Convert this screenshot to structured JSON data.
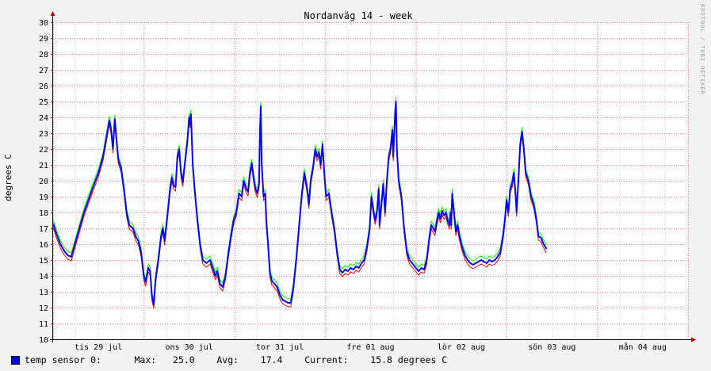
{
  "chart_data": {
    "type": "line",
    "title": "Nordanväg 14 - week",
    "ylabel": "degrees C",
    "xlabel": "",
    "ylim": [
      10,
      30
    ],
    "yticks": [
      10,
      11,
      12,
      13,
      14,
      15,
      16,
      17,
      18,
      19,
      20,
      21,
      22,
      23,
      24,
      25,
      26,
      27,
      28,
      29,
      30
    ],
    "xlim": [
      0,
      7
    ],
    "x_unit": "days",
    "day_labels": [
      "tis 29 jul",
      "ons 30 jul",
      "tor 31 jul",
      "fre 01 aug",
      "lör 02 aug",
      "sön 03 aug",
      "mån 04 aug"
    ],
    "grid": true,
    "series": [
      {
        "name": "temp sensor 0",
        "color": "#0000ff",
        "points": [
          [
            0.0,
            17.3
          ],
          [
            0.04,
            16.6
          ],
          [
            0.08,
            16.0
          ],
          [
            0.12,
            15.6
          ],
          [
            0.16,
            15.3
          ],
          [
            0.2,
            15.2
          ],
          [
            0.24,
            16.0
          ],
          [
            0.29,
            17.0
          ],
          [
            0.34,
            18.0
          ],
          [
            0.39,
            18.8
          ],
          [
            0.44,
            19.6
          ],
          [
            0.5,
            20.5
          ],
          [
            0.55,
            21.5
          ],
          [
            0.59,
            22.8
          ],
          [
            0.62,
            23.8
          ],
          [
            0.64,
            23.2
          ],
          [
            0.66,
            22.0
          ],
          [
            0.68,
            23.9
          ],
          [
            0.7,
            22.5
          ],
          [
            0.72,
            21.3
          ],
          [
            0.75,
            20.8
          ],
          [
            0.78,
            19.5
          ],
          [
            0.81,
            18.0
          ],
          [
            0.84,
            17.2
          ],
          [
            0.88,
            17.0
          ],
          [
            0.91,
            16.5
          ],
          [
            0.94,
            16.2
          ],
          [
            0.97,
            15.5
          ],
          [
            1.0,
            14.0
          ],
          [
            1.02,
            13.6
          ],
          [
            1.05,
            14.5
          ],
          [
            1.07,
            14.3
          ],
          [
            1.09,
            12.7
          ],
          [
            1.11,
            12.2
          ],
          [
            1.13,
            13.8
          ],
          [
            1.16,
            15.0
          ],
          [
            1.19,
            16.5
          ],
          [
            1.21,
            17.0
          ],
          [
            1.23,
            16.2
          ],
          [
            1.26,
            17.8
          ],
          [
            1.29,
            19.5
          ],
          [
            1.31,
            20.2
          ],
          [
            1.33,
            19.7
          ],
          [
            1.35,
            19.6
          ],
          [
            1.37,
            21.5
          ],
          [
            1.39,
            22.0
          ],
          [
            1.41,
            20.5
          ],
          [
            1.43,
            19.9
          ],
          [
            1.46,
            21.5
          ],
          [
            1.48,
            22.5
          ],
          [
            1.5,
            24.0
          ],
          [
            1.51,
            23.6
          ],
          [
            1.52,
            24.2
          ],
          [
            1.54,
            21.0
          ],
          [
            1.56,
            19.5
          ],
          [
            1.59,
            17.6
          ],
          [
            1.62,
            16.0
          ],
          [
            1.65,
            15.0
          ],
          [
            1.69,
            14.8
          ],
          [
            1.73,
            15.0
          ],
          [
            1.76,
            14.5
          ],
          [
            1.79,
            14.0
          ],
          [
            1.81,
            14.3
          ],
          [
            1.84,
            13.5
          ],
          [
            1.87,
            13.3
          ],
          [
            1.9,
            14.0
          ],
          [
            1.93,
            15.3
          ],
          [
            1.96,
            16.5
          ],
          [
            1.99,
            17.5
          ],
          [
            2.02,
            18.0
          ],
          [
            2.05,
            19.2
          ],
          [
            2.08,
            19.0
          ],
          [
            2.1,
            20.0
          ],
          [
            2.13,
            19.5
          ],
          [
            2.15,
            19.3
          ],
          [
            2.17,
            20.5
          ],
          [
            2.19,
            21.1
          ],
          [
            2.21,
            20.2
          ],
          [
            2.23,
            19.5
          ],
          [
            2.25,
            19.2
          ],
          [
            2.27,
            19.8
          ],
          [
            2.28,
            23.0
          ],
          [
            2.29,
            24.7
          ],
          [
            2.3,
            21.0
          ],
          [
            2.32,
            19.0
          ],
          [
            2.34,
            19.2
          ],
          [
            2.35,
            17.5
          ],
          [
            2.37,
            16.0
          ],
          [
            2.39,
            14.2
          ],
          [
            2.41,
            13.7
          ],
          [
            2.44,
            13.5
          ],
          [
            2.47,
            13.3
          ],
          [
            2.5,
            12.8
          ],
          [
            2.53,
            12.5
          ],
          [
            2.56,
            12.4
          ],
          [
            2.59,
            12.3
          ],
          [
            2.62,
            12.3
          ],
          [
            2.65,
            13.3
          ],
          [
            2.68,
            15.0
          ],
          [
            2.71,
            17.0
          ],
          [
            2.74,
            19.0
          ],
          [
            2.77,
            20.5
          ],
          [
            2.8,
            19.5
          ],
          [
            2.82,
            18.5
          ],
          [
            2.84,
            20.0
          ],
          [
            2.87,
            21.0
          ],
          [
            2.89,
            22.0
          ],
          [
            2.91,
            21.5
          ],
          [
            2.93,
            21.8
          ],
          [
            2.95,
            21.0
          ],
          [
            2.97,
            22.3
          ],
          [
            2.99,
            20.5
          ],
          [
            3.01,
            19.0
          ],
          [
            3.04,
            19.2
          ],
          [
            3.07,
            18.0
          ],
          [
            3.1,
            17.0
          ],
          [
            3.13,
            15.5
          ],
          [
            3.16,
            14.4
          ],
          [
            3.19,
            14.2
          ],
          [
            3.22,
            14.4
          ],
          [
            3.25,
            14.3
          ],
          [
            3.28,
            14.5
          ],
          [
            3.31,
            14.4
          ],
          [
            3.34,
            14.6
          ],
          [
            3.37,
            14.5
          ],
          [
            3.4,
            14.8
          ],
          [
            3.43,
            15.0
          ],
          [
            3.46,
            15.8
          ],
          [
            3.49,
            17.0
          ],
          [
            3.51,
            19.0
          ],
          [
            3.53,
            18.2
          ],
          [
            3.55,
            17.5
          ],
          [
            3.57,
            18.0
          ],
          [
            3.59,
            19.5
          ],
          [
            3.6,
            17.2
          ],
          [
            3.62,
            18.5
          ],
          [
            3.64,
            19.8
          ],
          [
            3.66,
            18.0
          ],
          [
            3.68,
            20.0
          ],
          [
            3.7,
            21.5
          ],
          [
            3.72,
            22.0
          ],
          [
            3.74,
            23.2
          ],
          [
            3.75,
            21.5
          ],
          [
            3.77,
            24.2
          ],
          [
            3.78,
            25.0
          ],
          [
            3.79,
            22.0
          ],
          [
            3.81,
            20.0
          ],
          [
            3.84,
            19.0
          ],
          [
            3.87,
            17.0
          ],
          [
            3.9,
            15.5
          ],
          [
            3.93,
            15.0
          ],
          [
            3.96,
            14.8
          ],
          [
            4.0,
            14.5
          ],
          [
            4.03,
            14.3
          ],
          [
            4.06,
            14.5
          ],
          [
            4.09,
            14.4
          ],
          [
            4.12,
            15.0
          ],
          [
            4.15,
            16.5
          ],
          [
            4.17,
            17.2
          ],
          [
            4.19,
            17.0
          ],
          [
            4.21,
            16.8
          ],
          [
            4.23,
            17.4
          ],
          [
            4.25,
            18.0
          ],
          [
            4.27,
            17.6
          ],
          [
            4.29,
            18.1
          ],
          [
            4.31,
            17.8
          ],
          [
            4.33,
            18.0
          ],
          [
            4.35,
            17.5
          ],
          [
            4.37,
            17.2
          ],
          [
            4.38,
            18.0
          ],
          [
            4.39,
            17.2
          ],
          [
            4.4,
            19.2
          ],
          [
            4.42,
            18.0
          ],
          [
            4.44,
            16.8
          ],
          [
            4.46,
            17.2
          ],
          [
            4.48,
            16.5
          ],
          [
            4.51,
            15.8
          ],
          [
            4.54,
            15.3
          ],
          [
            4.57,
            15.0
          ],
          [
            4.6,
            14.8
          ],
          [
            4.63,
            14.7
          ],
          [
            4.66,
            14.8
          ],
          [
            4.69,
            14.9
          ],
          [
            4.72,
            15.0
          ],
          [
            4.75,
            14.9
          ],
          [
            4.78,
            14.8
          ],
          [
            4.81,
            15.0
          ],
          [
            4.84,
            14.9
          ],
          [
            4.87,
            15.0
          ],
          [
            4.9,
            15.2
          ],
          [
            4.93,
            15.5
          ],
          [
            4.96,
            16.5
          ],
          [
            4.98,
            17.5
          ],
          [
            5.0,
            18.8
          ],
          [
            5.02,
            18.0
          ],
          [
            5.04,
            19.5
          ],
          [
            5.06,
            19.8
          ],
          [
            5.08,
            20.5
          ],
          [
            5.1,
            19.0
          ],
          [
            5.11,
            18.0
          ],
          [
            5.13,
            20.0
          ],
          [
            5.15,
            22.3
          ],
          [
            5.17,
            23.1
          ],
          [
            5.19,
            22.0
          ],
          [
            5.21,
            20.5
          ],
          [
            5.24,
            20.0
          ],
          [
            5.27,
            19.0
          ],
          [
            5.3,
            18.5
          ],
          [
            5.33,
            17.5
          ],
          [
            5.35,
            16.5
          ],
          [
            5.38,
            16.4
          ],
          [
            5.4,
            16.1
          ],
          [
            5.42,
            15.9
          ],
          [
            5.44,
            15.7
          ]
        ],
        "max_trace_color": "#00ff00",
        "min_trace_color": "#ff0000"
      }
    ],
    "legend": {
      "label": "temp sensor 0:",
      "max_label": "Max:",
      "max_value": "25.0",
      "avg_label": "Avg:",
      "avg_value": "17.4",
      "current_label": "Current:",
      "current_value": "15.8 degrees C"
    },
    "watermark": "RRDTOOL / TOBI OETIKER"
  }
}
